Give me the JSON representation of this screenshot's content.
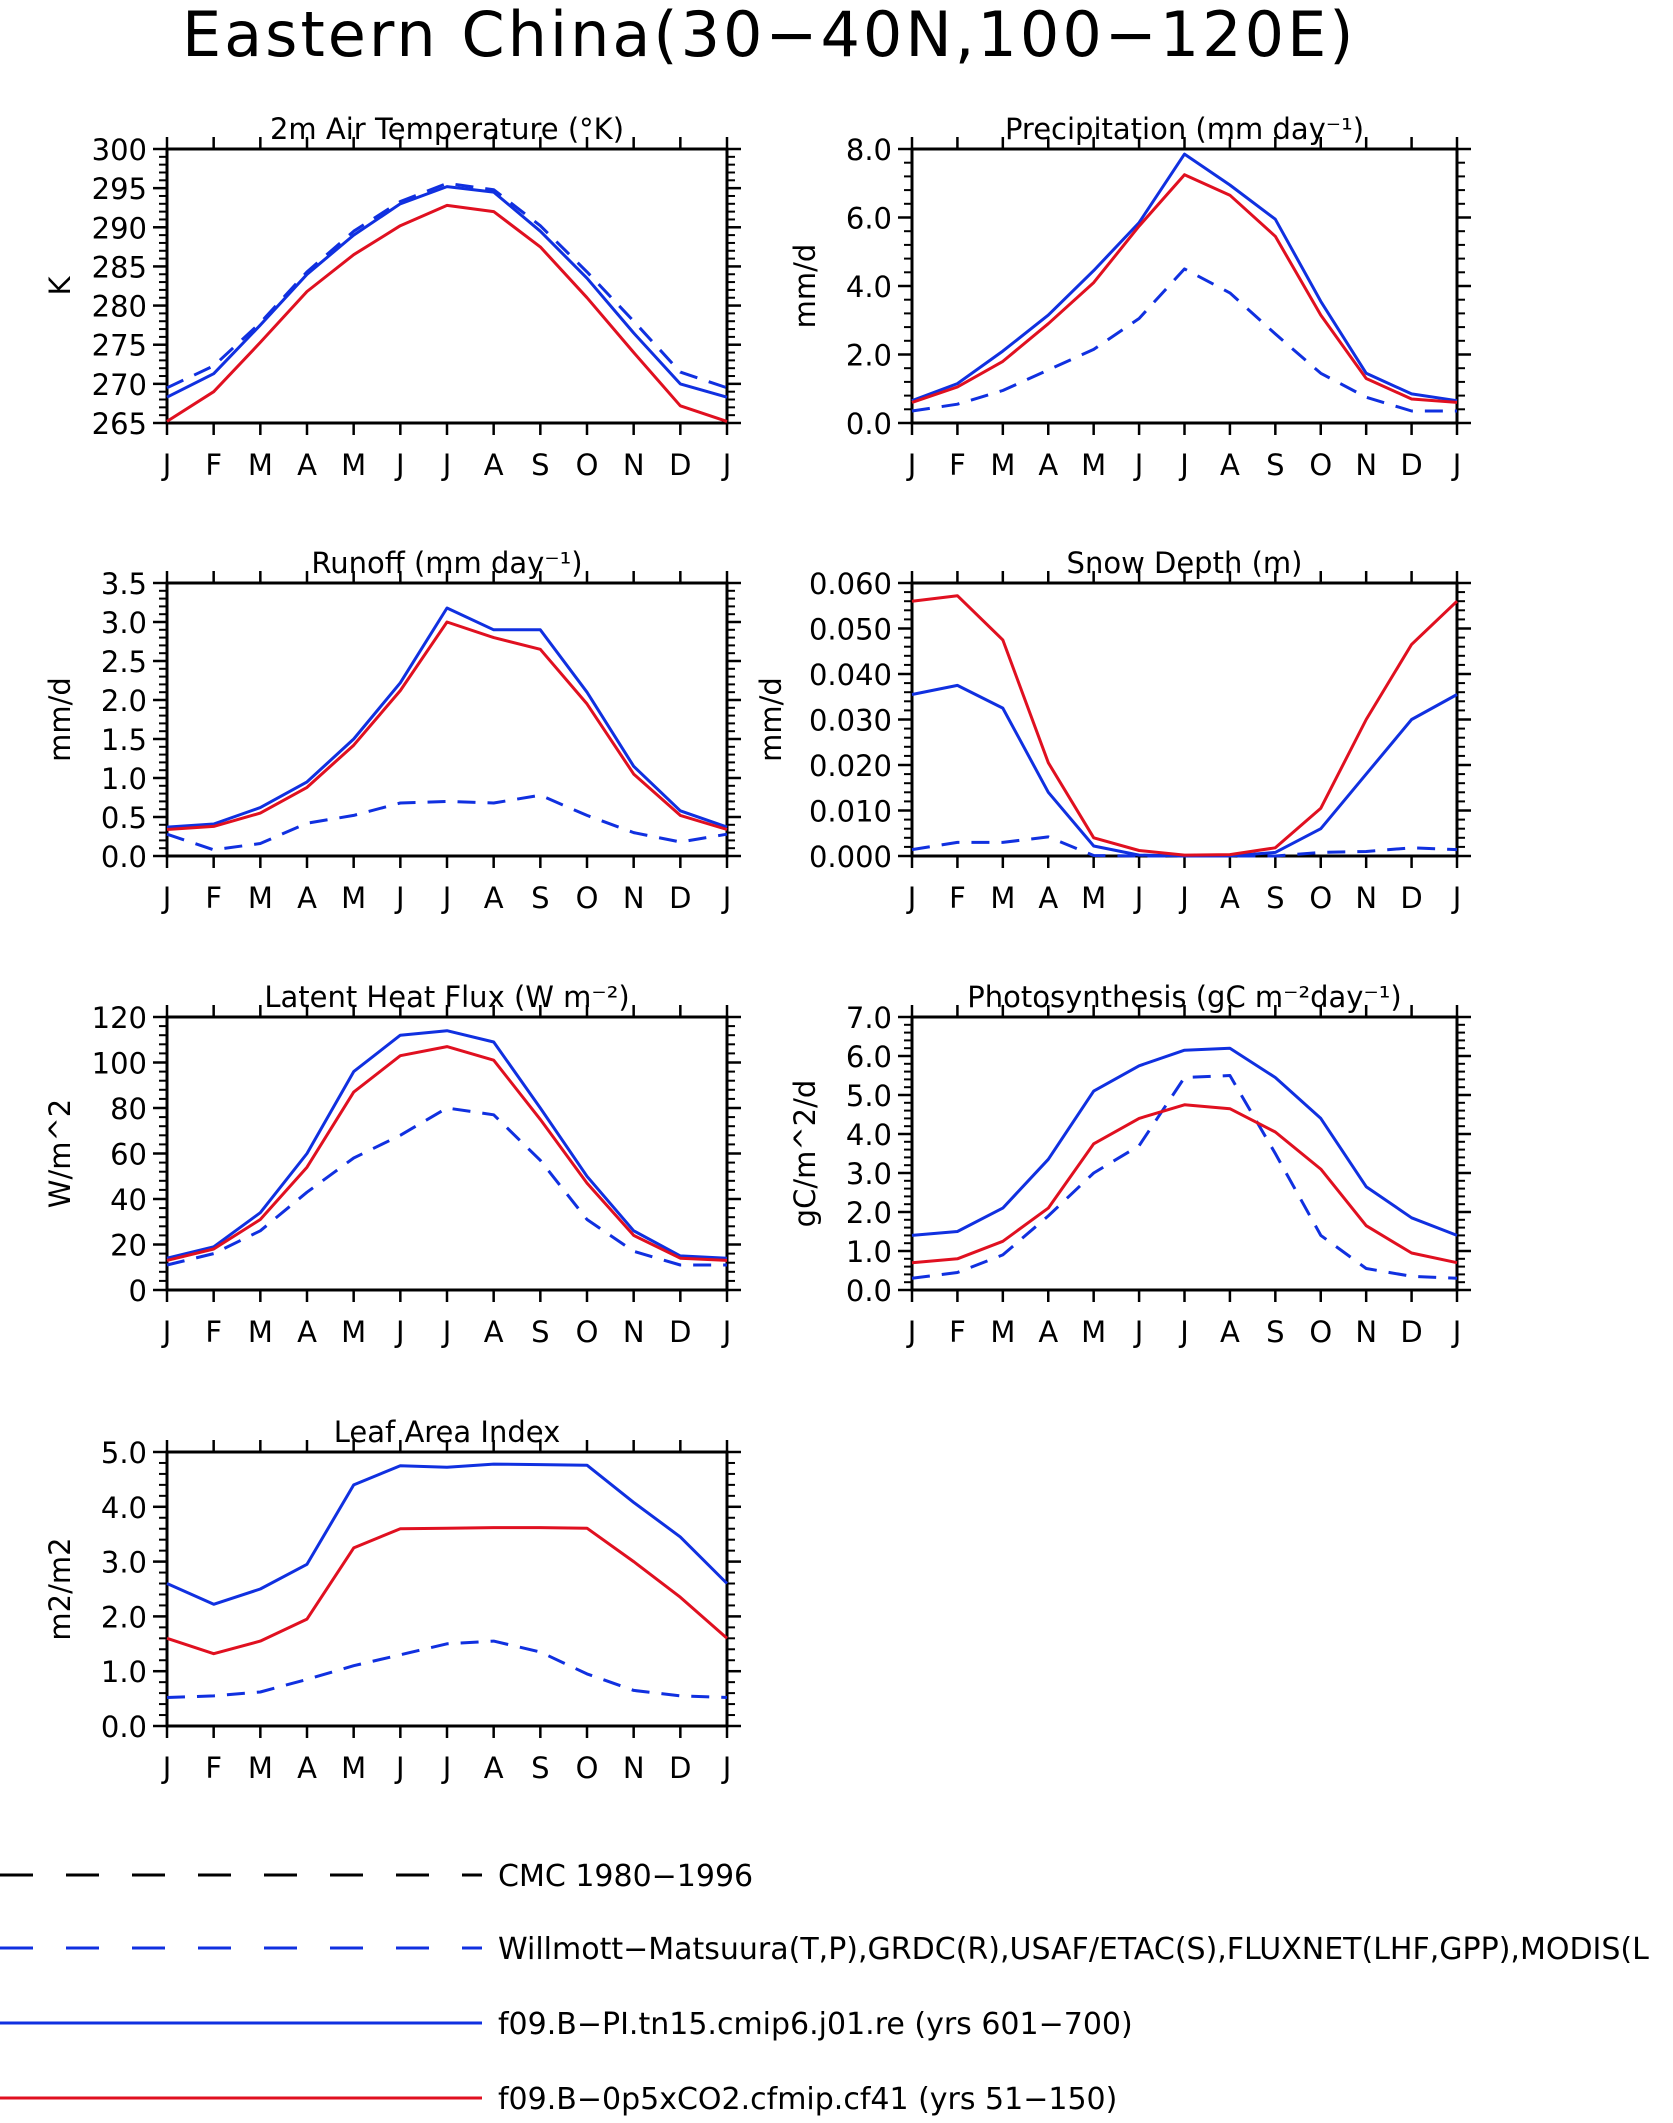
{
  "page_title": "Eastern China(30−40N,100−120E)",
  "months": [
    "J",
    "F",
    "M",
    "A",
    "M",
    "J",
    "J",
    "A",
    "S",
    "O",
    "N",
    "D",
    "J"
  ],
  "colors": {
    "obs": "#1030e0",
    "run_blue": "#1030e0",
    "run_red": "#e01020",
    "cmc": "#000000"
  },
  "legend": [
    {
      "label": "CMC 1980−1996",
      "color": "#000000",
      "dash": true
    },
    {
      "label": "Willmott−Matsuura(T,P),GRDC(R),USAF/ETAC(S),FLUXNET(LHF,GPP),MODIS(L",
      "color": "#1030e0",
      "dash": true
    },
    {
      "label": "f09.B−PI.tn15.cmip6.j01.re (yrs 601−700)",
      "color": "#1030e0",
      "dash": false
    },
    {
      "label": "f09.B−0p5xCO2.cfmip.cf41 (yrs 51−150)",
      "color": "#e01020",
      "dash": false
    }
  ],
  "chart_data": [
    {
      "type": "line",
      "title": "2m Air Temperature (°K)",
      "ylabel": "K",
      "ylim": [
        265,
        300
      ],
      "yticks": [
        "265",
        "270",
        "275",
        "280",
        "285",
        "290",
        "295",
        "300"
      ],
      "x": [
        "J",
        "F",
        "M",
        "A",
        "M",
        "J",
        "J",
        "A",
        "S",
        "O",
        "N",
        "D",
        "J"
      ],
      "series": [
        {
          "style": "dash",
          "color": "#1030e0",
          "values": [
            269.5,
            272.3,
            277.8,
            284.3,
            289.5,
            293.3,
            295.6,
            294.8,
            290.2,
            284.3,
            278.0,
            271.5,
            269.5
          ]
        },
        {
          "style": "solid",
          "color": "#1030e0",
          "values": [
            268.3,
            271.3,
            277.5,
            284.0,
            289.0,
            293.0,
            295.2,
            294.5,
            289.5,
            283.5,
            276.5,
            270.0,
            268.3
          ]
        },
        {
          "style": "solid",
          "color": "#e01020",
          "values": [
            265.2,
            269.0,
            275.3,
            281.8,
            286.5,
            290.2,
            292.8,
            292.0,
            287.5,
            281.0,
            274.0,
            267.2,
            265.2
          ]
        }
      ]
    },
    {
      "type": "line",
      "title": "Precipitation (mm day⁻¹)",
      "ylabel": "mm/d",
      "ylim": [
        0,
        8
      ],
      "yticks": [
        "0.0",
        "2.0",
        "4.0",
        "6.0",
        "8.0"
      ],
      "x": [
        "J",
        "F",
        "M",
        "A",
        "M",
        "J",
        "J",
        "A",
        "S",
        "O",
        "N",
        "D",
        "J"
      ],
      "series": [
        {
          "style": "dash",
          "color": "#1030e0",
          "values": [
            0.35,
            0.55,
            0.95,
            1.55,
            2.15,
            3.05,
            4.5,
            3.8,
            2.6,
            1.45,
            0.75,
            0.35,
            0.35
          ]
        },
        {
          "style": "solid",
          "color": "#1030e0",
          "values": [
            0.65,
            1.15,
            2.1,
            3.15,
            4.45,
            5.85,
            7.85,
            6.95,
            5.95,
            3.55,
            1.45,
            0.85,
            0.65
          ]
        },
        {
          "style": "solid",
          "color": "#e01020",
          "values": [
            0.6,
            1.05,
            1.8,
            2.9,
            4.1,
            5.75,
            7.25,
            6.65,
            5.45,
            3.15,
            1.3,
            0.7,
            0.6
          ]
        }
      ]
    },
    {
      "type": "line",
      "title": "Runoff (mm day⁻¹)",
      "ylabel": "mm/d",
      "ylim": [
        0,
        3.5
      ],
      "yticks": [
        "0.0",
        "0.5",
        "1.0",
        "1.5",
        "2.0",
        "2.5",
        "3.0",
        "3.5"
      ],
      "x": [
        "J",
        "F",
        "M",
        "A",
        "M",
        "J",
        "J",
        "A",
        "S",
        "O",
        "N",
        "D",
        "J"
      ],
      "series": [
        {
          "style": "dash",
          "color": "#1030e0",
          "values": [
            0.28,
            0.08,
            0.16,
            0.42,
            0.52,
            0.68,
            0.7,
            0.68,
            0.78,
            0.52,
            0.3,
            0.18,
            0.28
          ]
        },
        {
          "style": "solid",
          "color": "#1030e0",
          "values": [
            0.37,
            0.41,
            0.62,
            0.95,
            1.5,
            2.22,
            3.18,
            2.9,
            2.9,
            2.1,
            1.15,
            0.58,
            0.37
          ]
        },
        {
          "style": "solid",
          "color": "#e01020",
          "values": [
            0.34,
            0.38,
            0.55,
            0.88,
            1.42,
            2.12,
            3.0,
            2.8,
            2.65,
            1.95,
            1.05,
            0.52,
            0.34
          ]
        }
      ]
    },
    {
      "type": "line",
      "title": "Snow Depth (m)",
      "ylabel": "mm/d",
      "ylim": [
        0,
        0.06
      ],
      "yticks": [
        "0.000",
        "0.010",
        "0.020",
        "0.030",
        "0.040",
        "0.050",
        "0.060"
      ],
      "x": [
        "J",
        "F",
        "M",
        "A",
        "M",
        "J",
        "J",
        "A",
        "S",
        "O",
        "N",
        "D",
        "J"
      ],
      "series": [
        {
          "style": "dash",
          "color": "#000000",
          "values": [
            0,
            0,
            0,
            0,
            0,
            0,
            0,
            0,
            0,
            0,
            0,
            0,
            0
          ]
        },
        {
          "style": "dash",
          "color": "#1030e0",
          "values": [
            0.0014,
            0.003,
            0.003,
            0.0042,
            0.0001,
            0,
            0,
            0,
            0,
            0.0008,
            0.001,
            0.0018,
            0.0014
          ]
        },
        {
          "style": "solid",
          "color": "#1030e0",
          "values": [
            0.0355,
            0.0375,
            0.0325,
            0.014,
            0.0022,
            0.0002,
            0,
            0,
            0.0008,
            0.006,
            0.018,
            0.03,
            0.0355
          ]
        },
        {
          "style": "solid",
          "color": "#e01020",
          "values": [
            0.056,
            0.0572,
            0.0475,
            0.0205,
            0.004,
            0.0012,
            0.0002,
            0.0003,
            0.0018,
            0.0105,
            0.03,
            0.0465,
            0.056
          ]
        }
      ]
    },
    {
      "type": "line",
      "title": "Latent Heat Flux (W m⁻²)",
      "ylabel": "W/m^2",
      "ylim": [
        0,
        120
      ],
      "yticks": [
        "0",
        "20",
        "40",
        "60",
        "80",
        "100",
        "120"
      ],
      "x": [
        "J",
        "F",
        "M",
        "A",
        "M",
        "J",
        "J",
        "A",
        "S",
        "O",
        "N",
        "D",
        "J"
      ],
      "series": [
        {
          "style": "dash",
          "color": "#1030e0",
          "values": [
            11,
            16,
            26,
            43,
            58,
            68,
            80,
            77,
            57,
            31,
            17,
            11,
            11
          ]
        },
        {
          "style": "solid",
          "color": "#1030e0",
          "values": [
            14,
            19,
            34,
            60,
            96,
            112,
            114,
            109,
            80,
            50,
            26,
            15,
            14
          ]
        },
        {
          "style": "solid",
          "color": "#e01020",
          "values": [
            13,
            18,
            31,
            54,
            87,
            103,
            107,
            101,
            75,
            47,
            24,
            14,
            13
          ]
        }
      ]
    },
    {
      "type": "line",
      "title": "Photosynthesis (gC m⁻²day⁻¹)",
      "ylabel": "gC/m^2/d",
      "ylim": [
        0,
        7
      ],
      "yticks": [
        "0.0",
        "1.0",
        "2.0",
        "3.0",
        "4.0",
        "5.0",
        "6.0",
        "7.0"
      ],
      "x": [
        "J",
        "F",
        "M",
        "A",
        "M",
        "J",
        "J",
        "A",
        "S",
        "O",
        "N",
        "D",
        "J"
      ],
      "series": [
        {
          "style": "dash",
          "color": "#1030e0",
          "values": [
            0.3,
            0.45,
            0.9,
            1.9,
            3.0,
            3.7,
            5.45,
            5.5,
            3.5,
            1.4,
            0.55,
            0.35,
            0.3
          ]
        },
        {
          "style": "solid",
          "color": "#1030e0",
          "values": [
            1.4,
            1.5,
            2.1,
            3.35,
            5.1,
            5.75,
            6.15,
            6.2,
            5.45,
            4.4,
            2.65,
            1.85,
            1.4
          ]
        },
        {
          "style": "solid",
          "color": "#e01020",
          "values": [
            0.7,
            0.8,
            1.25,
            2.1,
            3.75,
            4.4,
            4.75,
            4.65,
            4.05,
            3.1,
            1.65,
            0.95,
            0.7
          ]
        }
      ]
    },
    {
      "type": "line",
      "title": "Leaf Area Index",
      "ylabel": "m2/m2",
      "ylim": [
        0,
        5
      ],
      "yticks": [
        "0.0",
        "1.0",
        "2.0",
        "3.0",
        "4.0",
        "5.0"
      ],
      "x": [
        "J",
        "F",
        "M",
        "A",
        "M",
        "J",
        "J",
        "A",
        "S",
        "O",
        "N",
        "D",
        "J"
      ],
      "series": [
        {
          "style": "dash",
          "color": "#1030e0",
          "values": [
            0.52,
            0.55,
            0.62,
            0.85,
            1.1,
            1.3,
            1.5,
            1.55,
            1.35,
            0.95,
            0.65,
            0.55,
            0.52
          ]
        },
        {
          "style": "solid",
          "color": "#1030e0",
          "values": [
            2.6,
            2.22,
            2.5,
            2.95,
            4.4,
            4.75,
            4.72,
            4.78,
            4.77,
            4.76,
            4.08,
            3.45,
            2.6
          ]
        },
        {
          "style": "solid",
          "color": "#e01020",
          "values": [
            1.6,
            1.32,
            1.55,
            1.95,
            3.25,
            3.6,
            3.61,
            3.62,
            3.62,
            3.61,
            3.0,
            2.35,
            1.6
          ]
        }
      ]
    }
  ]
}
